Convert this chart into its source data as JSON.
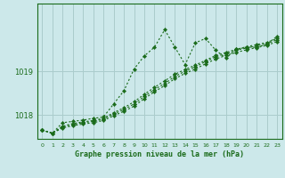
{
  "background_color": "#cce8ea",
  "grid_color": "#aacccc",
  "line_color": "#1a6b1a",
  "title": "Graphe pression niveau de la mer (hPa)",
  "ylabel_ticks": [
    1018,
    1019
  ],
  "xlim": [
    -0.5,
    23.5
  ],
  "ylim": [
    1017.45,
    1020.55
  ],
  "series": [
    {
      "x": [
        0,
        1,
        2,
        3,
        4,
        5,
        6,
        7,
        8,
        9,
        10,
        11,
        12,
        13,
        14,
        15,
        16,
        17,
        18,
        19,
        20,
        21,
        22,
        23
      ],
      "y": [
        1017.65,
        1017.58,
        1017.82,
        1017.85,
        1017.88,
        1017.92,
        1017.95,
        1018.25,
        1018.55,
        1019.05,
        1019.35,
        1019.55,
        1019.95,
        1019.55,
        1019.15,
        1019.65,
        1019.75,
        1019.48,
        1019.3,
        1019.5,
        1019.55,
        1019.55,
        1019.62,
        1019.8
      ]
    },
    {
      "x": [
        0,
        1,
        2,
        3,
        4,
        5,
        6,
        7,
        8,
        9,
        10,
        11,
        12,
        13,
        14,
        15,
        16,
        17,
        18,
        19,
        20,
        21,
        22,
        23
      ],
      "y": [
        1017.65,
        1017.58,
        1017.72,
        1017.78,
        1017.82,
        1017.85,
        1017.9,
        1018.02,
        1018.12,
        1018.25,
        1018.42,
        1018.58,
        1018.72,
        1018.88,
        1019.0,
        1019.1,
        1019.22,
        1019.33,
        1019.4,
        1019.48,
        1019.53,
        1019.58,
        1019.63,
        1019.72
      ]
    },
    {
      "x": [
        0,
        1,
        2,
        3,
        4,
        5,
        6,
        7,
        8,
        9,
        10,
        11,
        12,
        13,
        14,
        15,
        16,
        17,
        18,
        19,
        20,
        21,
        22,
        23
      ],
      "y": [
        1017.65,
        1017.58,
        1017.74,
        1017.8,
        1017.84,
        1017.87,
        1017.92,
        1018.05,
        1018.16,
        1018.3,
        1018.47,
        1018.63,
        1018.78,
        1018.93,
        1019.04,
        1019.14,
        1019.25,
        1019.36,
        1019.43,
        1019.5,
        1019.56,
        1019.61,
        1019.66,
        1019.75
      ]
    },
    {
      "x": [
        0,
        1,
        2,
        3,
        4,
        5,
        6,
        7,
        8,
        9,
        10,
        11,
        12,
        13,
        14,
        15,
        16,
        17,
        18,
        19,
        20,
        21,
        22,
        23
      ],
      "y": [
        1017.65,
        1017.58,
        1017.7,
        1017.75,
        1017.79,
        1017.82,
        1017.87,
        1017.98,
        1018.08,
        1018.2,
        1018.37,
        1018.53,
        1018.67,
        1018.83,
        1018.95,
        1019.05,
        1019.17,
        1019.28,
        1019.36,
        1019.43,
        1019.49,
        1019.54,
        1019.59,
        1019.68
      ]
    }
  ]
}
